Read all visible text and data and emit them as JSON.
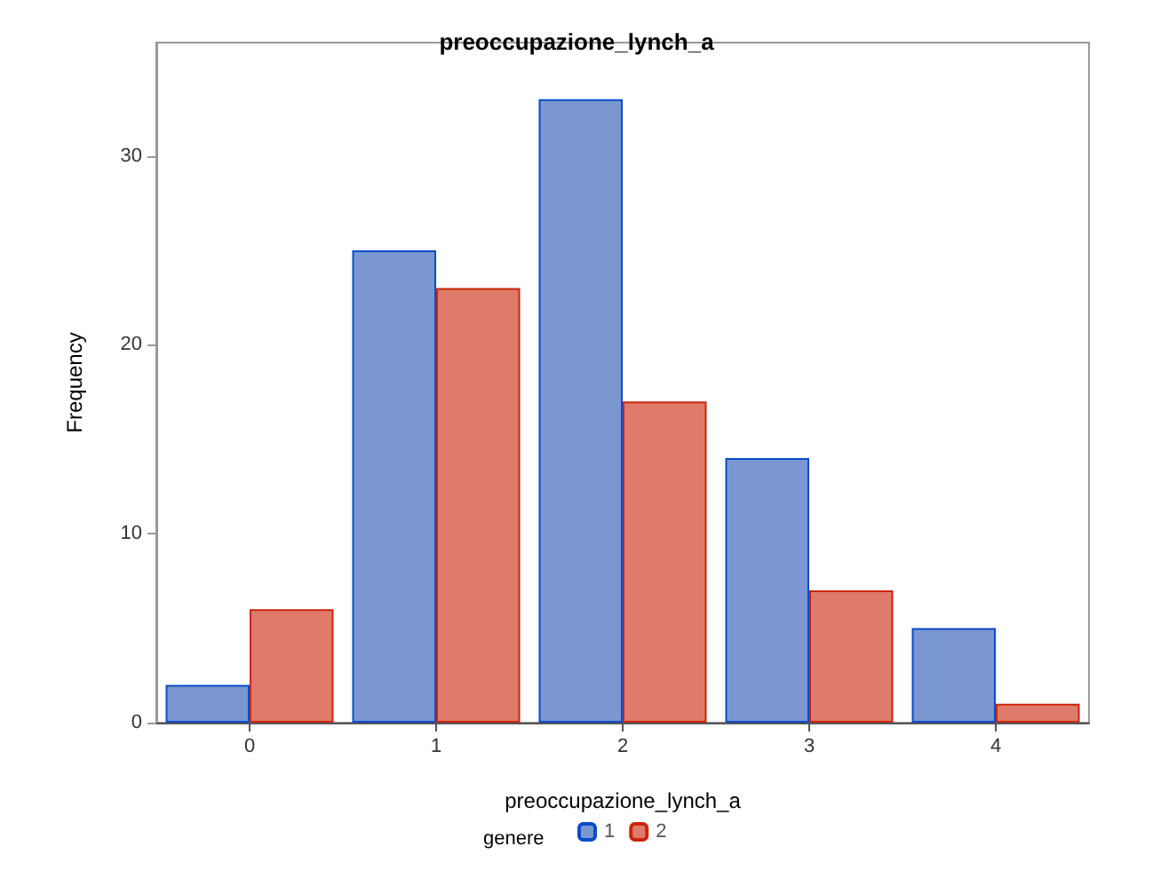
{
  "chart_data": {
    "type": "bar",
    "title": "preoccupazione_lynch_a",
    "xlabel": "preoccupazione_lynch_a",
    "ylabel": "Frequency",
    "legend_title": "genere",
    "categories": [
      "0",
      "1",
      "2",
      "3",
      "4"
    ],
    "series": [
      {
        "name": "1",
        "color": "#7b97cf",
        "values": [
          2,
          25,
          33,
          14,
          5
        ]
      },
      {
        "name": "2",
        "color": "#df7b6b",
        "values": [
          6,
          23,
          17,
          7,
          1
        ]
      }
    ],
    "ylim": [
      0,
      36
    ],
    "yticks": [
      0,
      10,
      20,
      30
    ],
    "grid": false,
    "legend": "bottom"
  }
}
